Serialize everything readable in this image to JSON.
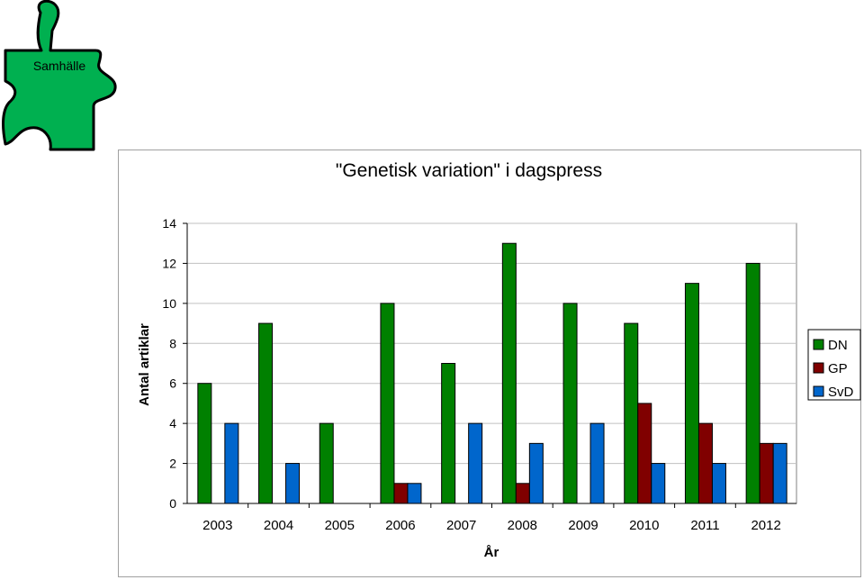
{
  "badge": {
    "label": "Samhälle",
    "color": "#00b050"
  },
  "chart_data": {
    "type": "bar",
    "title": "\"Genetisk variation\" i dagspress",
    "xlabel": "År",
    "ylabel": "Antal artiklar",
    "categories": [
      "2003",
      "2004",
      "2005",
      "2006",
      "2007",
      "2008",
      "2009",
      "2010",
      "2011",
      "2012"
    ],
    "series": [
      {
        "name": "DN",
        "color": "#008000",
        "values": [
          6,
          9,
          4,
          10,
          7,
          13,
          10,
          9,
          11,
          12
        ]
      },
      {
        "name": "GP",
        "color": "#800000",
        "values": [
          0,
          0,
          0,
          1,
          0,
          1,
          0,
          5,
          4,
          3
        ]
      },
      {
        "name": "SvD",
        "color": "#0066cc",
        "values": [
          4,
          2,
          0,
          1,
          4,
          3,
          4,
          2,
          2,
          3
        ]
      }
    ],
    "ylim": [
      0,
      14
    ],
    "yticks": [
      0,
      2,
      4,
      6,
      8,
      10,
      12,
      14
    ],
    "grid": true,
    "legend_position": "right"
  }
}
